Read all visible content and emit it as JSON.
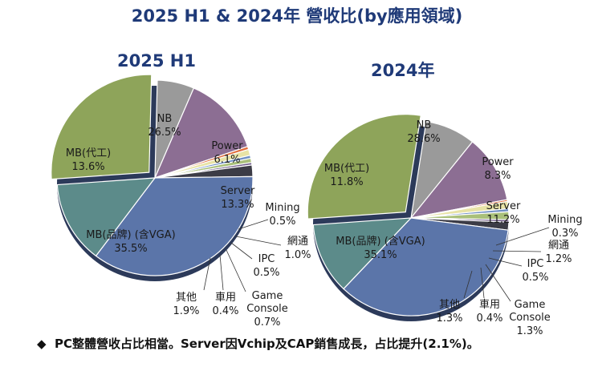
{
  "title": "2025 H1 & 2024年 營收比(by應用領域)",
  "chart_data": [
    {
      "type": "pie",
      "title": "2025 H1",
      "slices": [
        {
          "label": "NB",
          "value": 26.5,
          "value_text": "26.5%",
          "color": "#8ea45a"
        },
        {
          "label": "Power",
          "value": 6.1,
          "value_text": "6.1%",
          "color": "#9a9a9a"
        },
        {
          "label": "Server",
          "value": 13.3,
          "value_text": "13.3%",
          "color": "#8c6e93"
        },
        {
          "label": "Mining",
          "value": 0.5,
          "value_text": "0.5%",
          "color": "#e06d3b"
        },
        {
          "label": "網通",
          "value": 1.0,
          "value_text": "1.0%",
          "color": "#e8e3a6"
        },
        {
          "label": "IPC",
          "value": 0.5,
          "value_text": "0.5%",
          "color": "#6f8fc4"
        },
        {
          "label": "Game Console",
          "value": 0.7,
          "value_text": "0.7%",
          "color": "#a9c07a"
        },
        {
          "label": "車用",
          "value": 0.4,
          "value_text": "0.4%",
          "color": "#6e5a86"
        },
        {
          "label": "其他",
          "value": 1.9,
          "value_text": "1.9%",
          "color": "#3c3c46"
        },
        {
          "label": "MB(品牌) (含VGA)",
          "value": 35.5,
          "value_text": "35.5%",
          "color": "#5b75a9"
        },
        {
          "label": "MB(代工)",
          "value": 13.6,
          "value_text": "13.6%",
          "color": "#5c8b8a"
        }
      ]
    },
    {
      "type": "pie",
      "title": "2024年",
      "slices": [
        {
          "label": "NB",
          "value": 28.6,
          "value_text": "28.6%",
          "color": "#8ea45a"
        },
        {
          "label": "Power",
          "value": 8.3,
          "value_text": "8.3%",
          "color": "#9a9a9a"
        },
        {
          "label": "Server",
          "value": 11.2,
          "value_text": "11.2%",
          "color": "#8c6e93"
        },
        {
          "label": "Mining",
          "value": 0.3,
          "value_text": "0.3%",
          "color": "#e06d3b"
        },
        {
          "label": "網通",
          "value": 1.2,
          "value_text": "1.2%",
          "color": "#e8e3a6"
        },
        {
          "label": "IPC",
          "value": 0.5,
          "value_text": "0.5%",
          "color": "#6f8fc4"
        },
        {
          "label": "Game Console",
          "value": 1.3,
          "value_text": "1.3%",
          "color": "#a9c07a"
        },
        {
          "label": "車用",
          "value": 0.4,
          "value_text": "0.4%",
          "color": "#6e5a86"
        },
        {
          "label": "其他",
          "value": 1.3,
          "value_text": "1.3%",
          "color": "#3c3c46"
        },
        {
          "label": "MB(品牌) (含VGA)",
          "value": 35.1,
          "value_text": "35.1%",
          "color": "#5b75a9"
        },
        {
          "label": "MB(代工)",
          "value": 11.8,
          "value_text": "11.8%",
          "color": "#5c8b8a"
        }
      ]
    }
  ],
  "note": {
    "bullet": "◆",
    "text": "PC整體營收占比相當。Server因Vchip及CAP銷售成長，占比提升(2.1%)。"
  }
}
